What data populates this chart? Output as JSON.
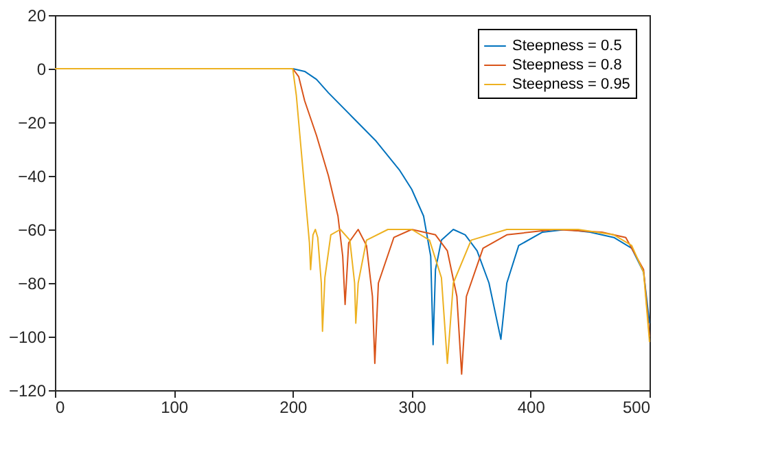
{
  "chart_data": {
    "type": "line",
    "xlim": [
      0,
      500
    ],
    "ylim": [
      -120,
      20
    ],
    "xticks": [
      0,
      100,
      200,
      300,
      400,
      500
    ],
    "yticks": [
      -120,
      -100,
      -80,
      -60,
      -40,
      -20,
      0,
      20
    ],
    "grid": false,
    "legend": "top right",
    "line_style": "solid",
    "marker": "none",
    "series": [
      {
        "name": "Steepness = 0.5",
        "color": "#0072bd",
        "x": [
          0,
          100,
          200,
          210,
          220,
          230,
          250,
          270,
          290,
          300,
          310,
          316,
          318,
          320,
          325,
          335,
          345,
          355,
          365,
          375,
          380,
          390,
          410,
          430,
          450,
          470,
          485,
          495,
          500
        ],
        "values": [
          0,
          0,
          0,
          -1,
          -4,
          -9,
          -18,
          -27,
          -38,
          -45,
          -55,
          -70,
          -103,
          -75,
          -64,
          -60,
          -62,
          -68,
          -80,
          -101,
          -80,
          -66,
          -61,
          -60,
          -61,
          -63,
          -67,
          -76,
          -95
        ]
      },
      {
        "name": "Steepness = 0.8",
        "color": "#d95319",
        "x": [
          0,
          100,
          200,
          205,
          210,
          220,
          230,
          238,
          242,
          244,
          247,
          255,
          262,
          267,
          269,
          272,
          285,
          300,
          320,
          330,
          338,
          342,
          346,
          360,
          380,
          420,
          460,
          480,
          495,
          500
        ],
        "values": [
          0,
          0,
          0,
          -3,
          -12,
          -25,
          -40,
          -55,
          -70,
          -88,
          -65,
          -60,
          -66,
          -85,
          -110,
          -80,
          -63,
          -60,
          -62,
          -68,
          -85,
          -114,
          -85,
          -67,
          -62,
          -60,
          -61,
          -63,
          -75,
          -100
        ]
      },
      {
        "name": "Steepness = 0.95",
        "color": "#edb120",
        "x": [
          0,
          100,
          200,
          203,
          207,
          211,
          214,
          215,
          217,
          219,
          221,
          224,
          225,
          227,
          232,
          240,
          248,
          252,
          253,
          255,
          262,
          280,
          300,
          315,
          325,
          330,
          335,
          350,
          380,
          440,
          470,
          485,
          495,
          500
        ],
        "values": [
          0,
          0,
          0,
          -10,
          -30,
          -50,
          -65,
          -75,
          -62,
          -60,
          -63,
          -80,
          -98,
          -78,
          -62,
          -60,
          -64,
          -80,
          -95,
          -80,
          -64,
          -60,
          -60,
          -64,
          -78,
          -110,
          -80,
          -64,
          -60,
          -60,
          -62,
          -66,
          -76,
          -102
        ]
      }
    ]
  }
}
